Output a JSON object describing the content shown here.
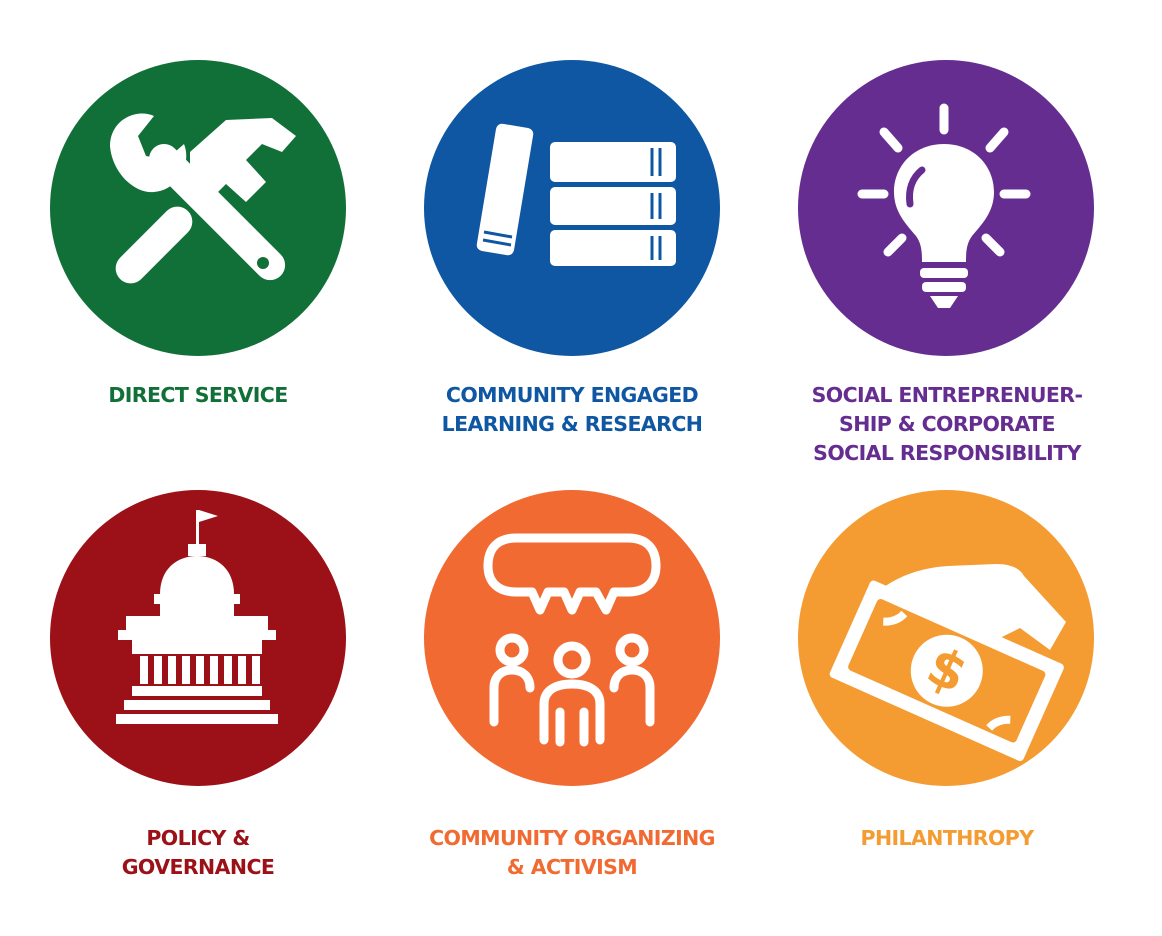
{
  "colors": {
    "direct_service": "#117038",
    "learning": "#0f57a2",
    "social": "#662d91",
    "policy": "#9b1117",
    "organizing": "#f06a31",
    "philanthropy": "#f49c32"
  },
  "items": [
    {
      "id": "direct-service",
      "icon": "wrench-hammer-icon",
      "label_lines": [
        "DIRECT SERVICE"
      ]
    },
    {
      "id": "community-engaged-learning",
      "icon": "books-icon",
      "label_lines": [
        "COMMUNITY ENGAGED",
        "LEARNING & RESEARCH"
      ]
    },
    {
      "id": "social-entrepreneurship",
      "icon": "lightbulb-icon",
      "label_lines": [
        "SOCIAL ENTREPRENUER-",
        "SHIP & CORPORATE",
        "SOCIAL RESPONSIBILITY"
      ]
    },
    {
      "id": "policy-governance",
      "icon": "capitol-building-icon",
      "label_lines": [
        "POLICY &",
        "GOVERNANCE"
      ]
    },
    {
      "id": "community-organizing",
      "icon": "people-speech-icon",
      "label_lines": [
        "COMMUNITY ORGANIZING",
        "& ACTIVISM"
      ]
    },
    {
      "id": "philanthropy",
      "icon": "hand-money-icon",
      "label_lines": [
        "PHILANTHROPY"
      ]
    }
  ]
}
